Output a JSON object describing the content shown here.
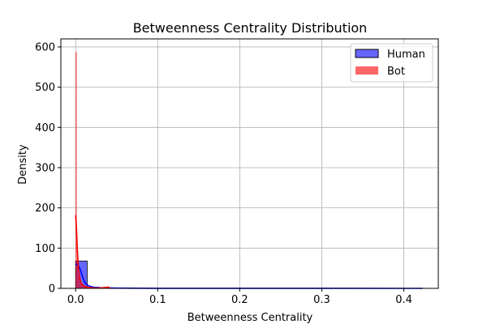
{
  "chart_data": {
    "type": "histogram",
    "title": "Betweenness Centrality Distribution",
    "xlabel": "Betweenness Centrality",
    "ylabel": "Density",
    "xlim": [
      -0.018,
      0.442
    ],
    "ylim": [
      0,
      620
    ],
    "x_ticks": [
      0.0,
      0.1,
      0.2,
      0.3,
      0.4
    ],
    "x_tick_labels": [
      "0.0",
      "0.1",
      "0.2",
      "0.3",
      "0.4"
    ],
    "y_ticks": [
      0,
      100,
      200,
      300,
      400,
      500,
      600
    ],
    "y_tick_labels": [
      "0",
      "100",
      "200",
      "300",
      "400",
      "500",
      "600"
    ],
    "grid": true,
    "legend_position": "top-right",
    "series": [
      {
        "name": "Human",
        "kind": "histogram+kde",
        "fill_color": "#0000ff",
        "fill_opacity": 0.6,
        "edge_color": "#000000",
        "line_color": "#0000ff",
        "bins": [
          {
            "x0": 0.0,
            "x1": 0.0141,
            "density": 68
          },
          {
            "x0": 0.0141,
            "x1": 0.0282,
            "density": 2
          },
          {
            "x0": 0.0282,
            "x1": 0.0423,
            "density": 0.6
          },
          {
            "x0": 0.0423,
            "x1": 0.0564,
            "density": 0.3
          },
          {
            "x0": 0.0564,
            "x1": 0.0705,
            "density": 0.2
          },
          {
            "x0": 0.0705,
            "x1": 0.0846,
            "density": 0.1
          },
          {
            "x0": 0.0846,
            "x1": 0.0987,
            "density": 0.1
          },
          {
            "x0": 0.0987,
            "x1": 0.1128,
            "density": 0.1
          },
          {
            "x0": 0.1128,
            "x1": 0.1269,
            "density": 0.05
          },
          {
            "x0": 0.1269,
            "x1": 0.141,
            "density": 0.05
          },
          {
            "x0": 0.141,
            "x1": 0.1551,
            "density": 0.05
          },
          {
            "x0": 0.1551,
            "x1": 0.1692,
            "density": 0.05
          },
          {
            "x0": 0.1692,
            "x1": 0.1833,
            "density": 0.03
          },
          {
            "x0": 0.1833,
            "x1": 0.1974,
            "density": 0.03
          },
          {
            "x0": 0.1974,
            "x1": 0.2115,
            "density": 0.03
          },
          {
            "x0": 0.2115,
            "x1": 0.2256,
            "density": 0.02
          },
          {
            "x0": 0.2256,
            "x1": 0.2397,
            "density": 0.02
          },
          {
            "x0": 0.2397,
            "x1": 0.2538,
            "density": 0.02
          },
          {
            "x0": 0.2538,
            "x1": 0.2679,
            "density": 0.02
          },
          {
            "x0": 0.2679,
            "x1": 0.282,
            "density": 0.02
          },
          {
            "x0": 0.282,
            "x1": 0.2961,
            "density": 0.02
          },
          {
            "x0": 0.2961,
            "x1": 0.3102,
            "density": 0.02
          },
          {
            "x0": 0.3102,
            "x1": 0.3243,
            "density": 0.02
          },
          {
            "x0": 0.3243,
            "x1": 0.3384,
            "density": 0.02
          },
          {
            "x0": 0.3384,
            "x1": 0.3525,
            "density": 0.02
          },
          {
            "x0": 0.3525,
            "x1": 0.3666,
            "density": 0.02
          },
          {
            "x0": 0.3666,
            "x1": 0.3807,
            "density": 0.02
          },
          {
            "x0": 0.3807,
            "x1": 0.3948,
            "density": 0.02
          },
          {
            "x0": 0.3948,
            "x1": 0.4089,
            "density": 0.02
          },
          {
            "x0": 0.4089,
            "x1": 0.423,
            "density": 0.02
          }
        ],
        "kde": [
          {
            "x": 0.0,
            "y": 60
          },
          {
            "x": 0.003,
            "y": 59
          },
          {
            "x": 0.006,
            "y": 45
          },
          {
            "x": 0.009,
            "y": 25
          },
          {
            "x": 0.012,
            "y": 12
          },
          {
            "x": 0.016,
            "y": 6
          },
          {
            "x": 0.022,
            "y": 3
          },
          {
            "x": 0.03,
            "y": 1.6
          },
          {
            "x": 0.05,
            "y": 0.6
          },
          {
            "x": 0.1,
            "y": 0.2
          },
          {
            "x": 0.2,
            "y": 0.1
          },
          {
            "x": 0.3,
            "y": 0.05
          },
          {
            "x": 0.423,
            "y": 0.02
          }
        ]
      },
      {
        "name": "Bot",
        "kind": "histogram+kde",
        "fill_color": "#ff0000",
        "fill_opacity": 0.6,
        "edge_color": "#ff0000",
        "line_color": "#ff0000",
        "bins": [
          {
            "x0": 0.0,
            "x1": 0.0014,
            "density": 588
          },
          {
            "x0": 0.0014,
            "x1": 0.0028,
            "density": 70
          },
          {
            "x0": 0.0028,
            "x1": 0.0042,
            "density": 32
          },
          {
            "x0": 0.0042,
            "x1": 0.0056,
            "density": 20
          },
          {
            "x0": 0.0056,
            "x1": 0.007,
            "density": 14
          },
          {
            "x0": 0.007,
            "x1": 0.0084,
            "density": 10
          },
          {
            "x0": 0.0084,
            "x1": 0.0098,
            "density": 8
          },
          {
            "x0": 0.0098,
            "x1": 0.0112,
            "density": 6
          },
          {
            "x0": 0.0112,
            "x1": 0.0126,
            "density": 5
          },
          {
            "x0": 0.0126,
            "x1": 0.014,
            "density": 4
          },
          {
            "x0": 0.014,
            "x1": 0.0154,
            "density": 3
          },
          {
            "x0": 0.0154,
            "x1": 0.0168,
            "density": 2.5
          },
          {
            "x0": 0.0168,
            "x1": 0.0182,
            "density": 2
          },
          {
            "x0": 0.0182,
            "x1": 0.0196,
            "density": 1.5
          },
          {
            "x0": 0.0196,
            "x1": 0.021,
            "density": 1.2
          },
          {
            "x0": 0.021,
            "x1": 0.0224,
            "density": 1
          },
          {
            "x0": 0.0224,
            "x1": 0.0238,
            "density": 0.8
          },
          {
            "x0": 0.0238,
            "x1": 0.0252,
            "density": 0.6
          },
          {
            "x0": 0.0252,
            "x1": 0.0266,
            "density": 0.5
          },
          {
            "x0": 0.0266,
            "x1": 0.028,
            "density": 0.5
          },
          {
            "x0": 0.028,
            "x1": 0.0294,
            "density": 0.4
          },
          {
            "x0": 0.0294,
            "x1": 0.0308,
            "density": 0.4
          },
          {
            "x0": 0.0308,
            "x1": 0.0322,
            "density": 0.3
          },
          {
            "x0": 0.0322,
            "x1": 0.0336,
            "density": 0.3
          },
          {
            "x0": 0.0336,
            "x1": 0.035,
            "density": 0.3
          },
          {
            "x0": 0.035,
            "x1": 0.0364,
            "density": 0.2
          },
          {
            "x0": 0.0364,
            "x1": 0.0378,
            "density": 0.2
          },
          {
            "x0": 0.0378,
            "x1": 0.0392,
            "density": 0.2
          },
          {
            "x0": 0.0392,
            "x1": 0.0406,
            "density": 0.2
          },
          {
            "x0": 0.0406,
            "x1": 0.042,
            "density": 0.2
          }
        ],
        "kde": [
          {
            "x": 0.0,
            "y": 182
          },
          {
            "x": 0.001,
            "y": 150
          },
          {
            "x": 0.002,
            "y": 100
          },
          {
            "x": 0.003,
            "y": 62
          },
          {
            "x": 0.004,
            "y": 38
          },
          {
            "x": 0.005,
            "y": 24
          },
          {
            "x": 0.007,
            "y": 12
          },
          {
            "x": 0.01,
            "y": 6
          },
          {
            "x": 0.015,
            "y": 2.5
          },
          {
            "x": 0.022,
            "y": 1.2
          },
          {
            "x": 0.03,
            "y": 0.8
          },
          {
            "x": 0.04,
            "y": 3
          },
          {
            "x": 0.042,
            "y": 0.5
          }
        ]
      }
    ]
  }
}
